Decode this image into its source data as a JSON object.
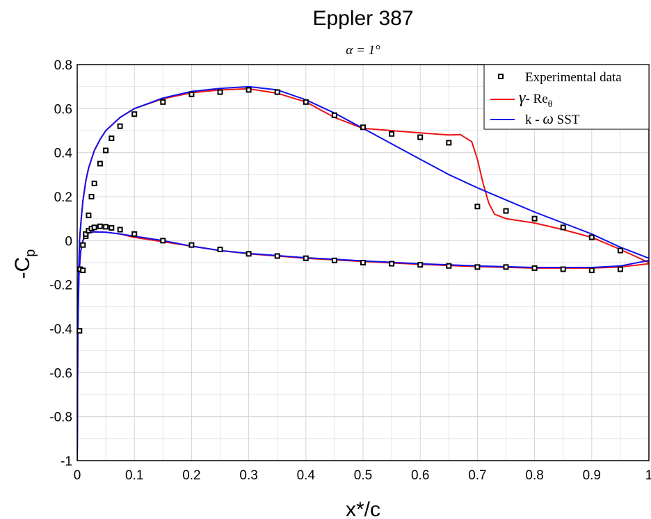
{
  "chart_data": {
    "type": "line",
    "title": "Eppler 387",
    "subtitle": "α = 1°",
    "xlabel": "x*/c",
    "ylabel": "-C_p",
    "xlim": [
      0,
      1
    ],
    "ylim": [
      -1,
      0.8
    ],
    "xticks": [
      "0",
      "0.1",
      "0.2",
      "0.3",
      "0.4",
      "0.5",
      "0.6",
      "0.7",
      "0.8",
      "0.9",
      "1"
    ],
    "yticks": [
      "-1",
      "-0.8",
      "-0.6",
      "-0.4",
      "-0.2",
      "0",
      "0.2",
      "0.4",
      "0.6",
      "0.8"
    ],
    "grid": true,
    "legend_position": "top-right",
    "series": [
      {
        "name": "Experimental data",
        "kind": "markers",
        "color": "#000000",
        "points": [
          [
            0.004,
            -0.41
          ],
          [
            0.005,
            -0.13
          ],
          [
            0.01,
            -0.135
          ],
          [
            0.01,
            -0.02
          ],
          [
            0.015,
            0.02
          ],
          [
            0.015,
            0.03
          ],
          [
            0.02,
            0.115
          ],
          [
            0.02,
            0.045
          ],
          [
            0.025,
            0.2
          ],
          [
            0.025,
            0.055
          ],
          [
            0.03,
            0.26
          ],
          [
            0.03,
            0.06
          ],
          [
            0.04,
            0.35
          ],
          [
            0.04,
            0.065
          ],
          [
            0.05,
            0.41
          ],
          [
            0.05,
            0.063
          ],
          [
            0.06,
            0.465
          ],
          [
            0.06,
            0.058
          ],
          [
            0.075,
            0.52
          ],
          [
            0.075,
            0.05
          ],
          [
            0.1,
            0.575
          ],
          [
            0.1,
            0.03
          ],
          [
            0.15,
            0.63
          ],
          [
            0.15,
            0.0
          ],
          [
            0.2,
            0.665
          ],
          [
            0.2,
            -0.02
          ],
          [
            0.25,
            0.675
          ],
          [
            0.25,
            -0.04
          ],
          [
            0.3,
            0.685
          ],
          [
            0.3,
            -0.06
          ],
          [
            0.35,
            0.675
          ],
          [
            0.35,
            -0.07
          ],
          [
            0.4,
            0.63
          ],
          [
            0.4,
            -0.08
          ],
          [
            0.45,
            0.57
          ],
          [
            0.45,
            -0.09
          ],
          [
            0.5,
            0.515
          ],
          [
            0.5,
            -0.1
          ],
          [
            0.55,
            0.485
          ],
          [
            0.55,
            -0.105
          ],
          [
            0.6,
            0.47
          ],
          [
            0.6,
            -0.11
          ],
          [
            0.65,
            0.445
          ],
          [
            0.65,
            -0.115
          ],
          [
            0.7,
            0.155
          ],
          [
            0.7,
            -0.12
          ],
          [
            0.75,
            0.135
          ],
          [
            0.75,
            -0.12
          ],
          [
            0.8,
            0.1
          ],
          [
            0.8,
            -0.125
          ],
          [
            0.85,
            0.06
          ],
          [
            0.85,
            -0.13
          ],
          [
            0.9,
            0.015
          ],
          [
            0.9,
            -0.135
          ],
          [
            0.95,
            -0.045
          ],
          [
            0.95,
            -0.13
          ]
        ]
      },
      {
        "name": "γ - Re_θ",
        "kind": "line",
        "color": "#ee1111",
        "upper": [
          [
            0.0,
            -1.0
          ],
          [
            0.001,
            -0.45
          ],
          [
            0.002,
            -0.2
          ],
          [
            0.004,
            0.0
          ],
          [
            0.007,
            0.1
          ],
          [
            0.01,
            0.18
          ],
          [
            0.015,
            0.27
          ],
          [
            0.02,
            0.33
          ],
          [
            0.03,
            0.41
          ],
          [
            0.04,
            0.46
          ],
          [
            0.05,
            0.5
          ],
          [
            0.075,
            0.56
          ],
          [
            0.1,
            0.6
          ],
          [
            0.15,
            0.645
          ],
          [
            0.2,
            0.672
          ],
          [
            0.25,
            0.685
          ],
          [
            0.3,
            0.69
          ],
          [
            0.35,
            0.67
          ],
          [
            0.4,
            0.63
          ],
          [
            0.45,
            0.56
          ],
          [
            0.5,
            0.51
          ],
          [
            0.55,
            0.5
          ],
          [
            0.6,
            0.49
          ],
          [
            0.65,
            0.48
          ],
          [
            0.67,
            0.482
          ],
          [
            0.69,
            0.45
          ],
          [
            0.7,
            0.37
          ],
          [
            0.71,
            0.26
          ],
          [
            0.72,
            0.17
          ],
          [
            0.73,
            0.12
          ],
          [
            0.75,
            0.1
          ],
          [
            0.8,
            0.08
          ],
          [
            0.85,
            0.05
          ],
          [
            0.9,
            0.015
          ],
          [
            0.95,
            -0.04
          ],
          [
            1.0,
            -0.1
          ]
        ],
        "lower": [
          [
            0.0,
            -1.0
          ],
          [
            0.001,
            -0.4
          ],
          [
            0.003,
            -0.15
          ],
          [
            0.006,
            -0.05
          ],
          [
            0.01,
            0.0
          ],
          [
            0.015,
            0.025
          ],
          [
            0.02,
            0.035
          ],
          [
            0.03,
            0.04
          ],
          [
            0.05,
            0.038
          ],
          [
            0.075,
            0.03
          ],
          [
            0.1,
            0.015
          ],
          [
            0.15,
            -0.005
          ],
          [
            0.2,
            -0.025
          ],
          [
            0.25,
            -0.045
          ],
          [
            0.3,
            -0.06
          ],
          [
            0.35,
            -0.07
          ],
          [
            0.4,
            -0.08
          ],
          [
            0.5,
            -0.095
          ],
          [
            0.6,
            -0.108
          ],
          [
            0.7,
            -0.118
          ],
          [
            0.8,
            -0.125
          ],
          [
            0.9,
            -0.125
          ],
          [
            0.95,
            -0.12
          ],
          [
            1.0,
            -0.105
          ]
        ]
      },
      {
        "name": "k - ω SST",
        "kind": "line",
        "color": "#1111ee",
        "upper": [
          [
            0.0,
            -1.0
          ],
          [
            0.001,
            -0.5
          ],
          [
            0.002,
            -0.22
          ],
          [
            0.004,
            0.0
          ],
          [
            0.007,
            0.1
          ],
          [
            0.01,
            0.18
          ],
          [
            0.015,
            0.27
          ],
          [
            0.02,
            0.33
          ],
          [
            0.03,
            0.41
          ],
          [
            0.04,
            0.46
          ],
          [
            0.05,
            0.5
          ],
          [
            0.075,
            0.56
          ],
          [
            0.1,
            0.6
          ],
          [
            0.15,
            0.648
          ],
          [
            0.2,
            0.678
          ],
          [
            0.25,
            0.692
          ],
          [
            0.3,
            0.7
          ],
          [
            0.35,
            0.685
          ],
          [
            0.4,
            0.64
          ],
          [
            0.45,
            0.58
          ],
          [
            0.5,
            0.51
          ],
          [
            0.55,
            0.44
          ],
          [
            0.6,
            0.37
          ],
          [
            0.65,
            0.3
          ],
          [
            0.7,
            0.24
          ],
          [
            0.75,
            0.185
          ],
          [
            0.8,
            0.13
          ],
          [
            0.85,
            0.08
          ],
          [
            0.9,
            0.03
          ],
          [
            0.95,
            -0.03
          ],
          [
            1.0,
            -0.08
          ]
        ],
        "lower": [
          [
            0.0,
            -1.0
          ],
          [
            0.001,
            -0.45
          ],
          [
            0.003,
            -0.16
          ],
          [
            0.006,
            -0.05
          ],
          [
            0.01,
            0.0
          ],
          [
            0.015,
            0.025
          ],
          [
            0.02,
            0.035
          ],
          [
            0.03,
            0.04
          ],
          [
            0.05,
            0.038
          ],
          [
            0.075,
            0.03
          ],
          [
            0.1,
            0.02
          ],
          [
            0.15,
            0.0
          ],
          [
            0.2,
            -0.025
          ],
          [
            0.25,
            -0.045
          ],
          [
            0.3,
            -0.058
          ],
          [
            0.35,
            -0.068
          ],
          [
            0.4,
            -0.078
          ],
          [
            0.5,
            -0.092
          ],
          [
            0.6,
            -0.105
          ],
          [
            0.7,
            -0.115
          ],
          [
            0.8,
            -0.122
          ],
          [
            0.9,
            -0.122
          ],
          [
            0.95,
            -0.115
          ],
          [
            1.0,
            -0.09
          ]
        ]
      }
    ]
  },
  "legend": {
    "items": [
      {
        "label": "Experimental data"
      },
      {
        "label_main": "- Re",
        "label_symbol": "γ",
        "label_sub": "θ"
      },
      {
        "label_main": "k - ",
        "label_symbol": "ω",
        "label_tail": " SST"
      }
    ]
  }
}
